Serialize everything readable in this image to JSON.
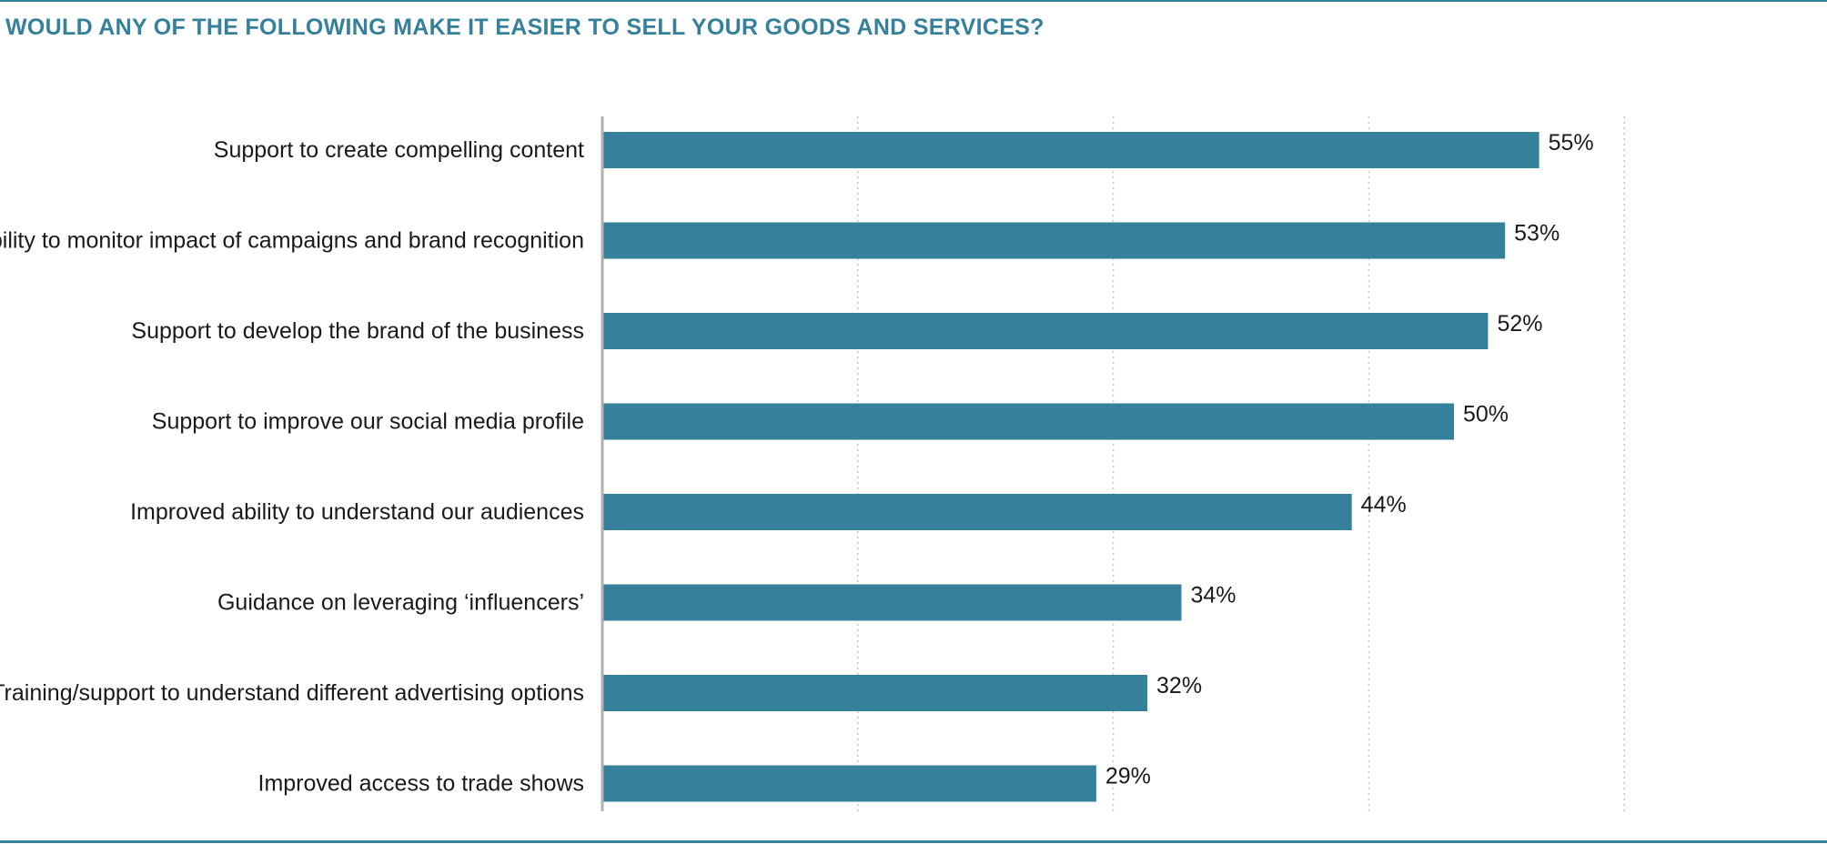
{
  "title": "WOULD ANY OF THE FOLLOWING MAKE IT EASIER TO SELL YOUR GOODS AND SERVICES?",
  "colors": {
    "bar": "#35809a",
    "title": "#35809a",
    "rule": "#35809a",
    "grid": "#c8c8c8",
    "axis": "#b0b0b0"
  },
  "chart_data": {
    "type": "bar",
    "orientation": "horizontal",
    "title": "WOULD ANY OF THE FOLLOWING MAKE IT EASIER TO SELL YOUR GOODS AND SERVICES?",
    "categories": [
      "Support to create compelling content",
      "Ability to monitor impact of campaigns and brand recognition",
      "Support to develop the brand of the business",
      "Support to improve our social media profile",
      "Improved ability to understand our audiences",
      "Guidance on leveraging ‘influencers’",
      "Training/support to understand different advertising options",
      "Improved access to trade shows"
    ],
    "values": [
      55,
      53,
      52,
      50,
      44,
      34,
      32,
      29
    ],
    "value_labels": [
      "55%",
      "53%",
      "52%",
      "50%",
      "44%",
      "34%",
      "32%",
      "29%"
    ],
    "xlim": [
      0,
      60
    ],
    "grid": true,
    "gridlines": [
      15,
      30,
      45,
      60
    ],
    "legend": "none"
  }
}
